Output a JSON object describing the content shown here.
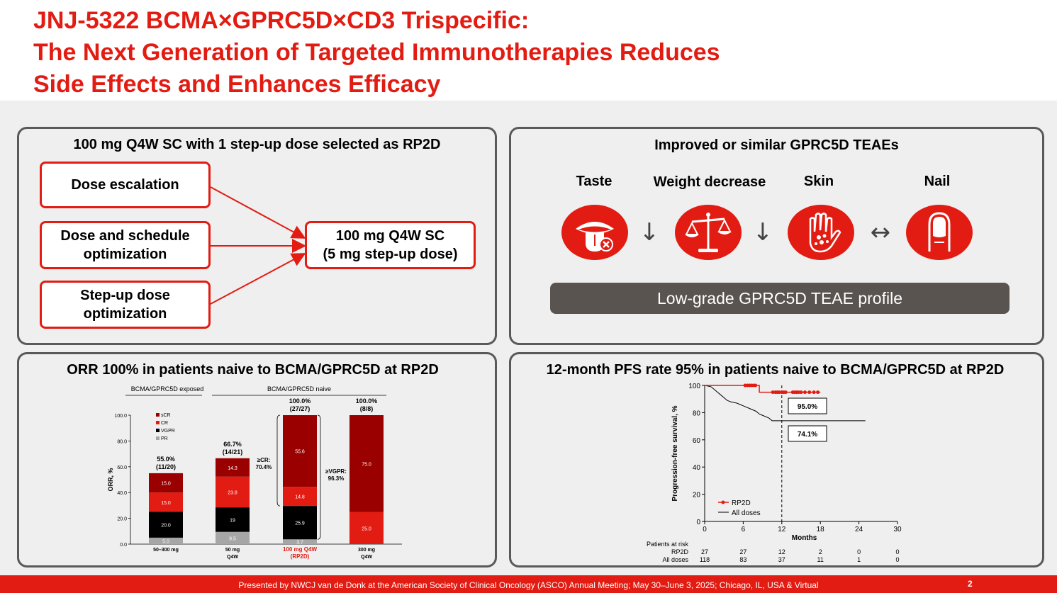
{
  "header": {
    "title_lines": [
      "JNJ-5322 BCMA×GPRC5D×CD3 Trispecific:",
      "The Next Generation of Targeted Immunotherapies Reduces",
      "Side Effects and Enhances Efficacy"
    ]
  },
  "rp2d_panel": {
    "title": "100 mg Q4W SC with 1 step-up dose selected as RP2D",
    "inputs": [
      {
        "lines": [
          "Dose escalation"
        ]
      },
      {
        "lines": [
          "Dose and schedule",
          "optimization"
        ]
      },
      {
        "lines": [
          "Step-up dose",
          "optimization"
        ]
      }
    ],
    "output": {
      "lines": [
        "100 mg Q4W SC",
        "(5 mg step-up dose)"
      ]
    }
  },
  "teae_panel": {
    "title": "Improved or similar GPRC5D TEAEs",
    "items": [
      {
        "label": "Taste",
        "icon": "tongue-icon",
        "trend": "↓"
      },
      {
        "label": "Weight decrease",
        "icon": "scale-icon",
        "trend": "↓"
      },
      {
        "label": "Skin",
        "icon": "hand-icon",
        "trend": "↔"
      },
      {
        "label": "Nail",
        "icon": "nail-icon",
        "trend": ""
      }
    ],
    "profile_label": "Low-grade GPRC5D TEAE profile"
  },
  "orr_panel": {
    "title": "ORR 100% in patients naive to BCMA/GPRC5D at RP2D"
  },
  "pfs_panel": {
    "title": "12-month PFS rate 95% in patients naive to BCMA/GPRC5D at RP2D"
  },
  "colors": {
    "accent_red": "#e21c12",
    "dark_red": "#9b0000",
    "black": "#000000",
    "gray_pr": "#a6a6a6",
    "panel_border": "#595959"
  },
  "chart_data": [
    {
      "type": "bar",
      "stacked": true,
      "group_labels": [
        "BCMA/GPRC5D exposed",
        "BCMA/GPRC5D naive"
      ],
      "categories": [
        {
          "label": "50–300 mg",
          "sublabel": "",
          "highlight": false
        },
        {
          "label": "50 mg",
          "sublabel": "Q4W",
          "highlight": false
        },
        {
          "label": "100 mg Q4W",
          "sublabel": "(RP2D)",
          "highlight": true
        },
        {
          "label": "300 mg",
          "sublabel": "Q4W",
          "highlight": false
        }
      ],
      "series": [
        {
          "name": "PR",
          "color": "#a6a6a6",
          "values": [
            5.0,
            9.5,
            3.7,
            0
          ],
          "labels": [
            "5.0",
            "9.5",
            "3.7",
            ""
          ]
        },
        {
          "name": "VGPR",
          "color": "#000000",
          "values": [
            20.0,
            19,
            25.9,
            0
          ],
          "labels": [
            "20.0",
            "19",
            "25.9",
            ""
          ]
        },
        {
          "name": "CR",
          "color": "#e21c12",
          "values": [
            15.0,
            23.8,
            14.8,
            25.0
          ],
          "labels": [
            "15.0",
            "23.8",
            "14.8",
            "25.0"
          ]
        },
        {
          "name": "sCR",
          "color": "#9b0000",
          "values": [
            15.0,
            14.3,
            55.6,
            75.0
          ],
          "labels": [
            "15.0",
            "14.3",
            "55.6",
            "75.0"
          ]
        }
      ],
      "totals": [
        {
          "pct": "55.0%",
          "n": "(11/20)"
        },
        {
          "pct": "66.7%",
          "n": "(14/21)"
        },
        {
          "pct": "100.0%",
          "n": "(27/27)"
        },
        {
          "pct": "100.0%",
          "n": "(8/8)"
        }
      ],
      "annotations": {
        "cr": [
          "≥CR:",
          "70.4%"
        ],
        "vgpr": [
          "≥VGPR:",
          "96.3%"
        ]
      },
      "ylabel": "ORR, %",
      "ylim": [
        0,
        100
      ],
      "yticks": [
        0,
        20,
        40,
        60,
        80,
        100
      ],
      "ytick_labels": [
        "0.0",
        "20.0",
        "40.0",
        "60.0",
        "80.0",
        "100.0"
      ],
      "legend_position": "top-left"
    },
    {
      "type": "line",
      "series": [
        {
          "name": "RP2D",
          "color": "#e21c12",
          "markers": true,
          "steps": [
            [
              0,
              100
            ],
            [
              8.5,
              100
            ],
            [
              8.5,
              95
            ],
            [
              18,
              95
            ]
          ],
          "censors": [
            6.3,
            6.7,
            7.0,
            7.3,
            7.6,
            7.9,
            10.6,
            11.0,
            11.3,
            11.6,
            12.0,
            12.3,
            12.6,
            13.7,
            14.0,
            14.3,
            14.6,
            15.0,
            15.6,
            16.3,
            17.0,
            17.6
          ]
        },
        {
          "name": "All doses",
          "color": "#000000",
          "markers": false,
          "steps": [
            [
              0,
              100
            ],
            [
              1,
              99
            ],
            [
              1.5,
              97
            ],
            [
              2,
              95
            ],
            [
              2.5,
              93
            ],
            [
              3,
              91
            ],
            [
              3.5,
              89
            ],
            [
              4,
              88
            ],
            [
              5,
              87
            ],
            [
              5.5,
              86
            ],
            [
              6,
              85
            ],
            [
              7,
              83
            ],
            [
              8,
              81
            ],
            [
              8.5,
              79
            ],
            [
              9,
              78
            ],
            [
              10,
              76
            ],
            [
              10.5,
              74
            ],
            [
              11,
              74
            ],
            [
              25,
              74
            ]
          ]
        }
      ],
      "callouts": [
        "95.0%",
        "74.1%"
      ],
      "landmark_x": 12,
      "xlabel": "Months",
      "ylabel": "Progression-free survival, %",
      "xlim": [
        0,
        30
      ],
      "ylim": [
        0,
        100
      ],
      "xticks": [
        0,
        6,
        12,
        18,
        24,
        30
      ],
      "yticks": [
        0,
        20,
        40,
        60,
        80,
        100
      ],
      "risk_table": {
        "title": "Patients at risk",
        "rows": [
          {
            "label": "RP2D",
            "values": [
              "27",
              "27",
              "12",
              "2",
              "0",
              "0"
            ]
          },
          {
            "label": "All doses",
            "values": [
              "118",
              "83",
              "37",
              "11",
              "1",
              "0"
            ]
          }
        ]
      },
      "legend_position": "bottom-left"
    }
  ],
  "footer": {
    "text": "Presented by NWCJ van de Donk at the American Society of Clinical Oncology (ASCO) Annual Meeting; May 30–June 3, 2025; Chicago, IL, USA & Virtual",
    "page": "2"
  }
}
